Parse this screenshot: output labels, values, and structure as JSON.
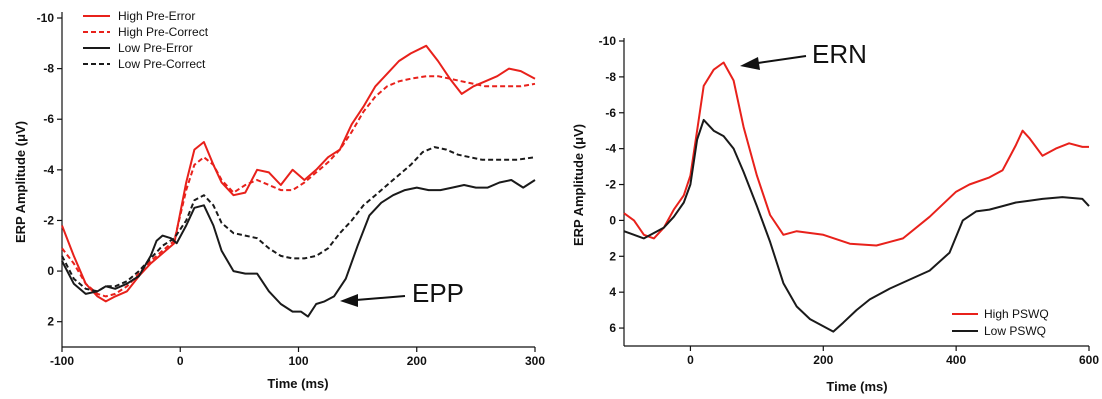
{
  "chart_data": [
    {
      "type": "line",
      "xlabel": "Time (ms)",
      "ylabel": "ERP Amplitude (μV)",
      "xlim": [
        -100,
        300
      ],
      "ylim": [
        3,
        -10
      ],
      "y_axis_inverted": true,
      "xticks": [
        "-100",
        "0",
        "100",
        "200",
        "300"
      ],
      "yticks": [
        "-10",
        "-8",
        "-6",
        "-4",
        "-2",
        "0",
        "2"
      ],
      "legend_position": "top-left",
      "annotation": "EPP",
      "series": [
        {
          "name": "High Pre-Error",
          "color": "#e8211b",
          "dash": "solid",
          "x": [
            -100,
            -90,
            -80,
            -70,
            -63,
            -55,
            -45,
            -35,
            -25,
            -15,
            -5,
            5,
            12,
            20,
            28,
            35,
            45,
            55,
            65,
            75,
            85,
            95,
            105,
            115,
            125,
            135,
            145,
            155,
            165,
            175,
            185,
            195,
            208,
            218,
            228,
            238,
            248,
            258,
            268,
            278,
            288,
            300
          ],
          "y": [
            -1.8,
            -0.6,
            0.5,
            1.0,
            1.2,
            1.0,
            0.8,
            0.2,
            -0.3,
            -0.7,
            -1.1,
            -3.5,
            -4.8,
            -5.1,
            -4.2,
            -3.5,
            -3.0,
            -3.1,
            -4.0,
            -3.9,
            -3.4,
            -4.0,
            -3.6,
            -4.0,
            -4.5,
            -4.8,
            -5.8,
            -6.5,
            -7.3,
            -7.8,
            -8.3,
            -8.6,
            -8.9,
            -8.3,
            -7.6,
            -7.0,
            -7.3,
            -7.5,
            -7.7,
            -8.0,
            -7.9,
            -7.6
          ]
        },
        {
          "name": "High Pre-Correct",
          "color": "#e8211b",
          "dash": "dashed",
          "x": [
            -100,
            -90,
            -80,
            -70,
            -63,
            -55,
            -45,
            -35,
            -25,
            -15,
            -5,
            5,
            12,
            20,
            28,
            35,
            45,
            55,
            65,
            75,
            85,
            95,
            105,
            115,
            125,
            135,
            145,
            155,
            165,
            175,
            185,
            195,
            208,
            218,
            228,
            238,
            248,
            258,
            268,
            278,
            288,
            300
          ],
          "y": [
            -0.9,
            -0.3,
            0.5,
            0.9,
            1.0,
            0.9,
            0.6,
            0.1,
            -0.4,
            -0.8,
            -1.2,
            -3.2,
            -4.2,
            -4.5,
            -4.2,
            -3.6,
            -3.1,
            -3.4,
            -3.6,
            -3.4,
            -3.2,
            -3.2,
            -3.5,
            -3.9,
            -4.3,
            -4.8,
            -5.5,
            -6.3,
            -6.9,
            -7.3,
            -7.5,
            -7.6,
            -7.7,
            -7.7,
            -7.6,
            -7.5,
            -7.4,
            -7.3,
            -7.3,
            -7.3,
            -7.3,
            -7.4
          ]
        },
        {
          "name": "Low Pre-Error",
          "color": "#1a1a1a",
          "dash": "solid",
          "x": [
            -100,
            -90,
            -80,
            -70,
            -63,
            -55,
            -45,
            -35,
            -25,
            -20,
            -15,
            -8,
            -3,
            5,
            12,
            20,
            28,
            35,
            45,
            55,
            65,
            75,
            85,
            95,
            102,
            108,
            115,
            122,
            130,
            140,
            150,
            160,
            170,
            180,
            190,
            200,
            210,
            220,
            230,
            240,
            250,
            260,
            270,
            280,
            290,
            300
          ],
          "y": [
            -0.4,
            0.5,
            0.9,
            0.8,
            0.6,
            0.7,
            0.5,
            0.2,
            -0.6,
            -1.2,
            -1.4,
            -1.3,
            -1.1,
            -1.8,
            -2.5,
            -2.6,
            -1.8,
            -0.8,
            0.0,
            0.1,
            0.1,
            0.8,
            1.3,
            1.6,
            1.6,
            1.8,
            1.3,
            1.2,
            1.0,
            0.3,
            -1.0,
            -2.2,
            -2.7,
            -3.0,
            -3.2,
            -3.3,
            -3.2,
            -3.2,
            -3.3,
            -3.4,
            -3.3,
            -3.3,
            -3.5,
            -3.6,
            -3.3,
            -3.6
          ]
        },
        {
          "name": "Low Pre-Correct",
          "color": "#1a1a1a",
          "dash": "dashed",
          "x": [
            -100,
            -90,
            -80,
            -70,
            -63,
            -55,
            -45,
            -35,
            -25,
            -15,
            -5,
            5,
            12,
            20,
            28,
            35,
            45,
            55,
            65,
            75,
            85,
            95,
            105,
            115,
            125,
            135,
            145,
            155,
            165,
            175,
            185,
            195,
            205,
            215,
            225,
            235,
            245,
            255,
            265,
            275,
            285,
            300
          ],
          "y": [
            -0.6,
            0.3,
            0.7,
            0.8,
            0.6,
            0.6,
            0.4,
            0.0,
            -0.5,
            -1.0,
            -1.3,
            -2.0,
            -2.8,
            -3.0,
            -2.6,
            -1.9,
            -1.5,
            -1.4,
            -1.3,
            -0.9,
            -0.6,
            -0.5,
            -0.5,
            -0.6,
            -0.9,
            -1.5,
            -2.0,
            -2.6,
            -3.0,
            -3.4,
            -3.8,
            -4.2,
            -4.7,
            -4.9,
            -4.8,
            -4.6,
            -4.5,
            -4.4,
            -4.4,
            -4.4,
            -4.4,
            -4.5
          ]
        }
      ]
    },
    {
      "type": "line",
      "xlabel": "Time (ms)",
      "ylabel": "ERP Amplitude (μV)",
      "xlim": [
        -100,
        600
      ],
      "ylim": [
        7,
        -10
      ],
      "y_axis_inverted": true,
      "xticks": [
        "0",
        "200",
        "400",
        "600"
      ],
      "yticks": [
        "-10",
        "-8",
        "-6",
        "-4",
        "-2",
        "0",
        "2",
        "4",
        "6"
      ],
      "legend_position": "bottom-right",
      "annotation": "ERN",
      "series": [
        {
          "name": "High PSWQ",
          "color": "#e8211b",
          "dash": "solid",
          "x": [
            -100,
            -85,
            -70,
            -55,
            -40,
            -25,
            -10,
            0,
            10,
            20,
            35,
            50,
            65,
            80,
            100,
            120,
            140,
            160,
            200,
            240,
            280,
            320,
            360,
            400,
            420,
            450,
            470,
            480,
            490,
            500,
            510,
            530,
            550,
            570,
            590,
            600
          ],
          "y": [
            -0.4,
            0.0,
            0.8,
            1.0,
            0.4,
            -0.6,
            -1.4,
            -2.5,
            -5.0,
            -7.5,
            -8.4,
            -8.8,
            -7.8,
            -5.2,
            -2.5,
            -0.3,
            0.8,
            0.6,
            0.8,
            1.3,
            1.4,
            1.0,
            -0.2,
            -1.6,
            -2.0,
            -2.4,
            -2.8,
            -3.5,
            -4.2,
            -5.0,
            -4.6,
            -3.6,
            -4.0,
            -4.3,
            -4.1,
            -4.1
          ]
        },
        {
          "name": "Low PSWQ",
          "color": "#1a1a1a",
          "dash": "solid",
          "x": [
            -100,
            -85,
            -70,
            -55,
            -40,
            -25,
            -10,
            0,
            10,
            20,
            35,
            50,
            65,
            80,
            100,
            120,
            140,
            160,
            180,
            200,
            215,
            230,
            250,
            270,
            300,
            330,
            360,
            390,
            410,
            430,
            450,
            470,
            490,
            510,
            530,
            560,
            590,
            600
          ],
          "y": [
            0.6,
            0.8,
            1.0,
            0.7,
            0.4,
            -0.2,
            -1.0,
            -2.0,
            -4.5,
            -5.6,
            -5.0,
            -4.7,
            -4.0,
            -2.7,
            -0.8,
            1.2,
            3.5,
            4.8,
            5.5,
            5.9,
            6.2,
            5.7,
            5.0,
            4.4,
            3.8,
            3.3,
            2.8,
            1.8,
            0.0,
            -0.5,
            -0.6,
            -0.8,
            -1.0,
            -1.1,
            -1.2,
            -1.3,
            -1.2,
            -0.8
          ]
        }
      ]
    }
  ]
}
